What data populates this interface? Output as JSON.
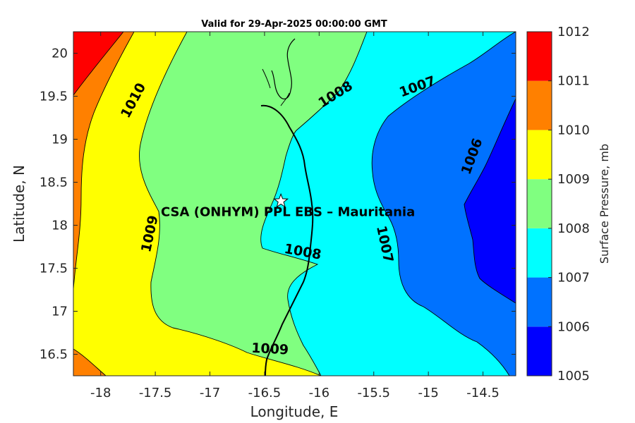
{
  "title": "Valid for 29-Apr-2025 00:00:00 GMT",
  "map": {
    "xlabel": "Longitude, E",
    "ylabel": "Latitude, N",
    "xlim": [
      -18.25,
      -14.2
    ],
    "ylim": [
      16.25,
      20.25
    ],
    "x_ticks": [
      {
        "value": -18,
        "label": "-18"
      },
      {
        "value": -17.5,
        "label": "-17.5"
      },
      {
        "value": -17,
        "label": "-17"
      },
      {
        "value": -16.5,
        "label": "-16.5"
      },
      {
        "value": -16,
        "label": "-16"
      },
      {
        "value": -15.5,
        "label": "-15.5"
      },
      {
        "value": -15,
        "label": "-15"
      },
      {
        "value": -14.5,
        "label": "-14.5"
      }
    ],
    "y_ticks": [
      {
        "value": 16.5,
        "label": "16.5"
      },
      {
        "value": 17,
        "label": "17"
      },
      {
        "value": 17.5,
        "label": "17.5"
      },
      {
        "value": 18,
        "label": "18"
      },
      {
        "value": 18.5,
        "label": "18.5"
      },
      {
        "value": 19,
        "label": "19"
      },
      {
        "value": 19.5,
        "label": "19.5"
      },
      {
        "value": 20,
        "label": "20"
      }
    ],
    "site": {
      "name": "CSA (ONHYM) PPL EBS  – Mauritania",
      "lon": -16.35,
      "lat": 18.28
    }
  },
  "contour_labels": [
    {
      "text": "1010",
      "lon": -17.7,
      "lat": 19.45,
      "angle": -62
    },
    {
      "text": "1009",
      "lon": -17.55,
      "lat": 17.9,
      "angle": -78
    },
    {
      "text": "1008",
      "lon": -15.85,
      "lat": 19.52,
      "angle": -32
    },
    {
      "text": "1008",
      "lon": -16.15,
      "lat": 17.69,
      "angle": 10
    },
    {
      "text": "1009",
      "lon": -16.45,
      "lat": 16.56,
      "angle": 3
    },
    {
      "text": "1007",
      "lon": -15.1,
      "lat": 19.61,
      "angle": -20
    },
    {
      "text": "1007",
      "lon": -15.4,
      "lat": 17.78,
      "angle": 78
    },
    {
      "text": "1006",
      "lon": -14.6,
      "lat": 18.8,
      "angle": -70
    }
  ],
  "colorbar": {
    "label": "Surface Pressure, mb",
    "levels": [
      {
        "label": "1005",
        "color": "#0000ff"
      },
      {
        "label": "1006",
        "color": "#0072ff"
      },
      {
        "label": "1007",
        "color": "#00ffff"
      },
      {
        "label": "1008",
        "color": "#80ff80"
      },
      {
        "label": "1009",
        "color": "#ffff00"
      },
      {
        "label": "1010",
        "color": "#ff8000"
      },
      {
        "label": "1011",
        "color": "#ff0000"
      },
      {
        "label": "1012",
        "color": "#800000"
      }
    ]
  },
  "colors": {
    "band_1011": "#ff0000",
    "band_1010": "#ff8000",
    "band_1009": "#ffff00",
    "band_1008": "#80ff80",
    "band_1007": "#00ffff",
    "band_1006": "#0072ff",
    "band_1005": "#0000ff"
  }
}
